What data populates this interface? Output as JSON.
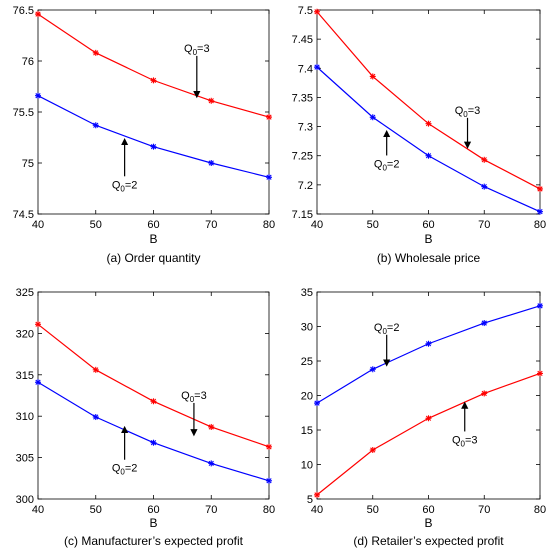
{
  "chart_data": [
    {
      "type": "line",
      "caption": "(a) Order quantity",
      "xlabel": "B",
      "ylabel": "",
      "x": [
        40,
        50,
        60,
        70,
        80
      ],
      "xlim": [
        40,
        80
      ],
      "xticks": [
        "40",
        "50",
        "60",
        "70",
        "80"
      ],
      "ylim": [
        74.5,
        76.5
      ],
      "yticks": [
        "74.5",
        "75",
        "75.5",
        "76",
        "76.5"
      ],
      "series": [
        {
          "q0": "3",
          "color": "#ff0000",
          "values": [
            76.46,
            76.08,
            75.81,
            75.61,
            75.45
          ]
        },
        {
          "q0": "2",
          "color": "#0000ff",
          "values": [
            75.66,
            75.37,
            75.16,
            75.0,
            74.86
          ]
        }
      ],
      "annotations": [
        {
          "series": 0,
          "q0": "3",
          "x": 67.5,
          "y": 76.05,
          "arrow_to_y": 75.67,
          "label_side": "above"
        },
        {
          "series": 1,
          "q0": "2",
          "x": 55,
          "y": 74.85,
          "arrow_to_y": 75.21,
          "label_side": "below"
        }
      ]
    },
    {
      "type": "line",
      "caption": "(b) Wholesale price",
      "xlabel": "B",
      "ylabel": "",
      "x": [
        40,
        50,
        60,
        70,
        80
      ],
      "xlim": [
        40,
        80
      ],
      "xticks": [
        "40",
        "50",
        "60",
        "70",
        "80"
      ],
      "ylim": [
        7.15,
        7.5
      ],
      "yticks": [
        "7.15",
        "7.2",
        "7.25",
        "7.3",
        "7.35",
        "7.4",
        "7.45",
        "7.5"
      ],
      "series": [
        {
          "q0": "3",
          "color": "#ff0000",
          "values": [
            7.497,
            7.386,
            7.305,
            7.243,
            7.193
          ]
        },
        {
          "q0": "2",
          "color": "#0000ff",
          "values": [
            7.402,
            7.316,
            7.25,
            7.197,
            7.154
          ]
        }
      ],
      "annotations": [
        {
          "series": 0,
          "q0": "3",
          "x": 67,
          "y": 7.315,
          "arrow_to_y": 7.268,
          "label_side": "above"
        },
        {
          "series": 1,
          "q0": "2",
          "x": 52.5,
          "y": 7.247,
          "arrow_to_y": 7.288,
          "label_side": "below"
        }
      ]
    },
    {
      "type": "line",
      "caption": "(c) Manufacturer’s expected profit",
      "xlabel": "B",
      "ylabel": "",
      "x": [
        40,
        50,
        60,
        70,
        80
      ],
      "xlim": [
        40,
        80
      ],
      "xticks": [
        "40",
        "50",
        "60",
        "70",
        "80"
      ],
      "ylim": [
        300,
        325
      ],
      "yticks": [
        "300",
        "305",
        "310",
        "315",
        "320",
        "325"
      ],
      "series": [
        {
          "q0": "3",
          "color": "#ff0000",
          "values": [
            321.1,
            315.6,
            311.8,
            308.7,
            306.3
          ]
        },
        {
          "q0": "2",
          "color": "#0000ff",
          "values": [
            314.1,
            309.9,
            306.8,
            304.3,
            302.2
          ]
        }
      ],
      "annotations": [
        {
          "series": 0,
          "q0": "3",
          "x": 67,
          "y": 311.6,
          "arrow_to_y": 308.0,
          "label_side": "above"
        },
        {
          "series": 1,
          "q0": "2",
          "x": 55,
          "y": 304.5,
          "arrow_to_y": 308.4,
          "label_side": "below"
        }
      ]
    },
    {
      "type": "line",
      "caption": "(d) Retailer’s expected profit",
      "xlabel": "B",
      "ylabel": "",
      "x": [
        40,
        50,
        60,
        70,
        80
      ],
      "xlim": [
        40,
        80
      ],
      "xticks": [
        "40",
        "50",
        "60",
        "70",
        "80"
      ],
      "ylim": [
        5,
        35
      ],
      "yticks": [
        "5",
        "10",
        "15",
        "20",
        "25",
        "30",
        "35"
      ],
      "series": [
        {
          "q0": "2",
          "color": "#0000ff",
          "values": [
            18.9,
            23.8,
            27.5,
            30.5,
            33.0
          ]
        },
        {
          "q0": "3",
          "color": "#ff0000",
          "values": [
            5.6,
            12.1,
            16.7,
            20.3,
            23.2
          ]
        }
      ],
      "annotations": [
        {
          "series": 0,
          "q0": "2",
          "x": 52.5,
          "y": 28.8,
          "arrow_to_y": 24.7,
          "label_side": "above"
        },
        {
          "series": 1,
          "q0": "3",
          "x": 66.5,
          "y": 14.5,
          "arrow_to_y": 18.6,
          "label_side": "below"
        }
      ]
    }
  ]
}
